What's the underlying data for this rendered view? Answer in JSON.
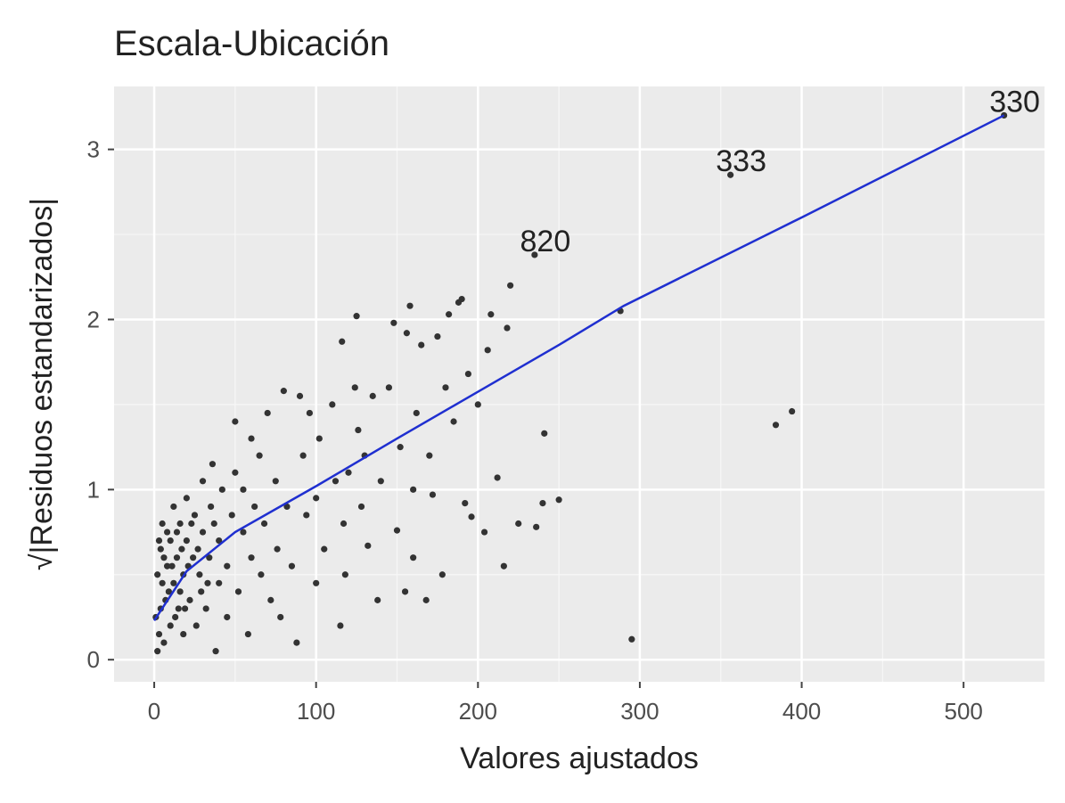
{
  "chart_data": {
    "type": "scatter",
    "title": "Escala-Ubicación",
    "xlabel": "Valores ajustados",
    "ylabel": "√|Residuos estandarizados|",
    "xlim": [
      -24.8,
      550
    ],
    "ylim": [
      -0.13,
      3.37
    ],
    "xticks": [
      0,
      100,
      200,
      300,
      400,
      500
    ],
    "yticks": [
      0,
      1,
      2,
      3
    ],
    "grid": true,
    "point_color": "#333333",
    "x": [
      2,
      3,
      4,
      5,
      6,
      3,
      5,
      7,
      8,
      10,
      10,
      12,
      12,
      14,
      15,
      16,
      18,
      18,
      20,
      20,
      22,
      24,
      25,
      26,
      28,
      30,
      30,
      32,
      34,
      35,
      36,
      38,
      40,
      40,
      42,
      45,
      45,
      48,
      50,
      50,
      52,
      55,
      55,
      58,
      60,
      60,
      62,
      65,
      66,
      68,
      70,
      72,
      75,
      76,
      78,
      80,
      82,
      85,
      88,
      90,
      92,
      94,
      96,
      100,
      100,
      102,
      105,
      110,
      112,
      115,
      116,
      117,
      118,
      120,
      124,
      125,
      126,
      128,
      130,
      132,
      135,
      138,
      140,
      145,
      148,
      150,
      152,
      155,
      156,
      158,
      160,
      160,
      162,
      165,
      168,
      170,
      172,
      175,
      178,
      180,
      182,
      185,
      188,
      190,
      192,
      194,
      196,
      200,
      204,
      206,
      208,
      212,
      216,
      218,
      220,
      225,
      235,
      236,
      240,
      241,
      250,
      288,
      295,
      356,
      384,
      394,
      525,
      1,
      2,
      4,
      6,
      8,
      9,
      11,
      13,
      14,
      16,
      17,
      19,
      21,
      23,
      27,
      29,
      33,
      37
    ],
    "y": [
      0.05,
      0.15,
      0.3,
      0.45,
      0.6,
      0.7,
      0.8,
      0.35,
      0.55,
      0.7,
      0.2,
      0.45,
      0.9,
      0.6,
      0.3,
      0.8,
      0.5,
      0.15,
      0.7,
      0.95,
      0.35,
      0.6,
      0.85,
      0.2,
      0.5,
      0.75,
      1.05,
      0.3,
      0.6,
      0.9,
      1.15,
      0.05,
      0.45,
      0.7,
      1.0,
      0.25,
      0.55,
      0.85,
      1.4,
      1.1,
      0.4,
      0.75,
      1.0,
      0.15,
      0.6,
      1.3,
      0.9,
      1.2,
      0.5,
      0.8,
      1.45,
      0.35,
      1.05,
      0.65,
      0.25,
      1.58,
      0.9,
      0.55,
      0.1,
      1.55,
      1.2,
      0.85,
      1.45,
      0.45,
      0.95,
      1.3,
      0.65,
      1.5,
      1.05,
      0.2,
      1.87,
      0.8,
      0.5,
      1.1,
      1.6,
      2.02,
      1.35,
      0.9,
      1.2,
      0.67,
      1.55,
      0.35,
      1.05,
      1.6,
      1.98,
      0.76,
      1.25,
      0.4,
      1.92,
      2.08,
      1.0,
      0.6,
      1.45,
      1.85,
      0.35,
      1.2,
      0.97,
      1.9,
      0.5,
      1.6,
      2.03,
      1.4,
      2.1,
      2.12,
      0.92,
      1.68,
      0.84,
      1.5,
      0.75,
      1.82,
      2.03,
      1.07,
      0.55,
      1.95,
      2.2,
      0.8,
      2.38,
      0.78,
      0.92,
      1.33,
      0.94,
      2.05,
      0.12,
      2.85,
      1.38,
      1.46,
      3.2,
      0.25,
      0.5,
      0.65,
      0.1,
      0.75,
      0.4,
      0.55,
      0.25,
      0.75,
      0.4,
      0.65,
      0.3,
      0.55,
      0.8,
      0.65,
      0.4,
      0.45,
      0.8
    ],
    "smooth": {
      "color": "#1f2fd0",
      "x": [
        0,
        20,
        50,
        100,
        150,
        190,
        250,
        290,
        400,
        525
      ],
      "y": [
        0.23,
        0.52,
        0.75,
        1.02,
        1.3,
        1.52,
        1.85,
        2.08,
        2.6,
        3.2
      ]
    },
    "annotations": [
      {
        "text": "820",
        "x": 235,
        "y": 2.38
      },
      {
        "text": "333",
        "x": 356,
        "y": 2.85
      },
      {
        "text": "330",
        "x": 525,
        "y": 3.2
      }
    ]
  }
}
